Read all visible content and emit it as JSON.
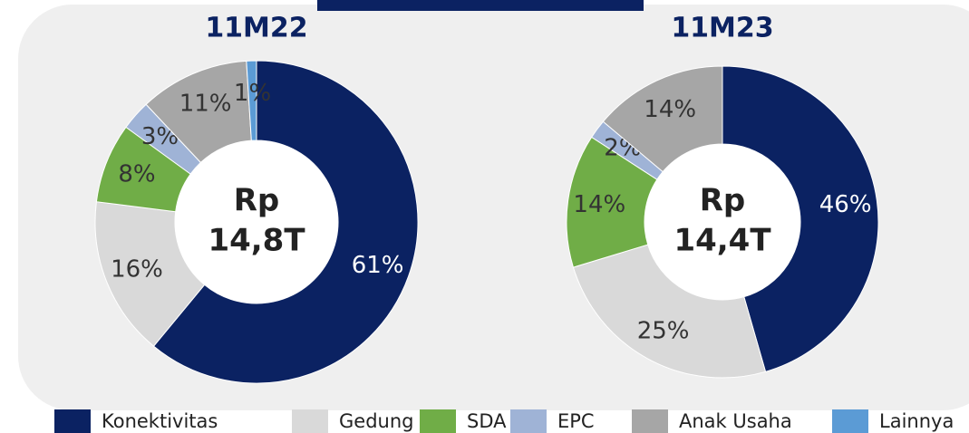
{
  "chart_data": [
    {
      "type": "pie",
      "title": "11M22",
      "categories": [
        "Konektivitas",
        "Gedung",
        "SDA",
        "EPC",
        "Anak Usaha",
        "Lainnya"
      ],
      "values": [
        61,
        16,
        8,
        3,
        11,
        1
      ],
      "colors": [
        "#0b2262",
        "#d9d9d9",
        "#70ad47",
        "#9fb3d6",
        "#a6a6a6",
        "#5b9bd5"
      ],
      "center_lines": [
        "Rp",
        "14,8T"
      ]
    },
    {
      "type": "pie",
      "title": "11M23",
      "categories": [
        "Konektivitas",
        "Gedung",
        "SDA",
        "EPC",
        "Anak Usaha"
      ],
      "values": [
        46,
        25,
        14,
        2,
        14
      ],
      "colors": [
        "#0b2262",
        "#d9d9d9",
        "#70ad47",
        "#9fb3d6",
        "#a6a6a6"
      ],
      "center_lines": [
        "Rp",
        "14,4T"
      ]
    }
  ]
}
